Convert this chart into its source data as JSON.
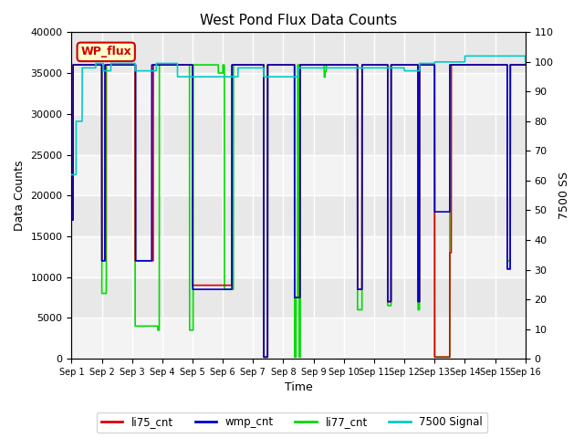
{
  "title": "West Pond Flux Data Counts",
  "xlabel": "Time",
  "ylabel_left": "Data Counts",
  "ylabel_right": "7500 SS",
  "ylim_left": [
    0,
    40000
  ],
  "ylim_right": [
    0,
    110
  ],
  "plot_bg_color": "#e8e8e8",
  "annotation_box": {
    "text": "WP_flux",
    "facecolor": "#ffffcc",
    "edgecolor": "#cc0000",
    "textcolor": "#cc0000"
  },
  "xtick_labels": [
    "Sep 1",
    "Sep 2",
    "Sep 3",
    "Sep 4",
    "Sep 5",
    "Sep 6",
    "Sep 7",
    "Sep 8",
    "Sep 9",
    "Sep 10",
    "Sep 11",
    "Sep 12",
    "Sep 13",
    "Sep 14",
    "Sep 15",
    "Sep 16"
  ],
  "series": {
    "li75_cnt": {
      "color": "#dd0000",
      "linewidth": 1.2,
      "zorder": 3
    },
    "wmp_cnt": {
      "color": "#0000cc",
      "linewidth": 1.2,
      "zorder": 4
    },
    "li77_cnt": {
      "color": "#00dd00",
      "linewidth": 1.2,
      "zorder": 2
    },
    "7500_signal": {
      "color": "#00cccc",
      "linewidth": 1.2,
      "zorder": 5
    }
  },
  "legend": {
    "labels": [
      "li75_cnt",
      "wmp_cnt",
      "li77_cnt",
      "7500 Signal"
    ],
    "colors": [
      "#dd0000",
      "#0000cc",
      "#00dd00",
      "#00cccc"
    ],
    "ncol": 4
  },
  "grid": {
    "color": "white",
    "linewidth": 1.0
  },
  "yticks_left": [
    0,
    5000,
    10000,
    15000,
    20000,
    25000,
    30000,
    35000,
    40000
  ],
  "yticks_right": [
    0,
    10,
    20,
    30,
    40,
    50,
    60,
    70,
    80,
    90,
    100,
    110
  ],
  "base_cnt": 36000,
  "base_sig": 99.5,
  "figsize": [
    6.4,
    4.8
  ],
  "dpi": 100
}
